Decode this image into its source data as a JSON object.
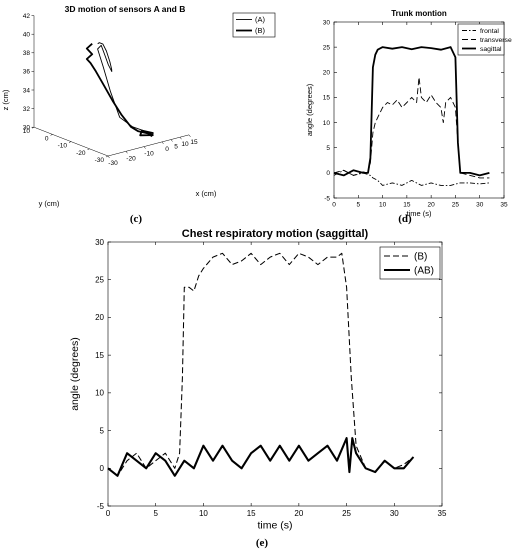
{
  "chart_data": [
    {
      "panel": "(c)",
      "type": "line",
      "title": "3D motion of sensors A and B",
      "xlabel": "x (cm)",
      "ylabel": "y (cm)",
      "zlabel": "z (cm)",
      "x_ticks": [
        "-30",
        "-20",
        "-10",
        "0",
        "5",
        "10",
        "15"
      ],
      "y_ticks": [
        "-30",
        "-20",
        "-10",
        "0",
        "10"
      ],
      "z_ticks": [
        "30",
        "32",
        "34",
        "36",
        "38",
        "40",
        "42"
      ],
      "xlim": [
        -30,
        15
      ],
      "ylim": [
        -30,
        10
      ],
      "zlim": [
        30,
        42
      ],
      "legend_position": "top-right",
      "series": [
        {
          "name": "(A)",
          "line": "thin",
          "points": [
            [
              -9,
              -4,
              39
            ],
            [
              -6,
              -2,
              38.8
            ],
            [
              -2,
              0,
              38.3
            ],
            [
              2,
              2,
              37.2
            ],
            [
              5,
              3,
              35.8
            ],
            [
              7,
              4,
              34.8
            ],
            [
              8,
              5,
              34.6
            ],
            [
              6,
              3,
              34.7
            ],
            [
              2,
              1,
              35.8
            ],
            [
              -2,
              -1,
              37.2
            ],
            [
              -6,
              -3,
              38.6
            ],
            [
              -8,
              -3,
              38.3
            ],
            [
              -7,
              -5,
              36.5
            ],
            [
              -6,
              -8,
              34
            ],
            [
              -5,
              -12,
              31.5
            ],
            [
              -4,
              -18,
              30.9
            ],
            [
              -3,
              -22,
              30.8
            ],
            [
              -2,
              -25,
              30.7
            ]
          ]
        },
        {
          "name": "(B)",
          "line": "thick",
          "points": [
            [
              -10,
              -2,
              38.9
            ],
            [
              -12,
              -1,
              38.4
            ],
            [
              -11,
              -3,
              37.9
            ],
            [
              -13,
              -2,
              37.4
            ],
            [
              -12,
              -3,
              37
            ],
            [
              -11,
              -5,
              36.2
            ],
            [
              -10,
              -8,
              35
            ],
            [
              -9,
              -12,
              33.5
            ],
            [
              -8,
              -16,
              32.2
            ],
            [
              -7,
              -20,
              31.2
            ],
            [
              -6,
              -23,
              30.9
            ],
            [
              -3,
              -25,
              30.7
            ],
            [
              -2,
              -27,
              30.6
            ],
            [
              -8,
              -26,
              30.8
            ],
            [
              -5,
              -24,
              31
            ],
            [
              -1,
              -26,
              30.7
            ],
            [
              -4,
              -28,
              30.6
            ]
          ]
        }
      ]
    },
    {
      "panel": "(d)",
      "type": "line",
      "title": "Trunk montion",
      "xlabel": "time (s)",
      "ylabel": "angle (degrees)",
      "xlim": [
        0,
        35
      ],
      "ylim": [
        -5,
        30
      ],
      "x_ticks": [
        0,
        5,
        10,
        15,
        20,
        25,
        30,
        35
      ],
      "y_ticks": [
        -5,
        0,
        5,
        10,
        15,
        20,
        25,
        30
      ],
      "legend_position": "top-right",
      "series": [
        {
          "name": "frontal",
          "style": "dash-dot",
          "x": [
            0,
            2,
            4,
            6,
            7.5,
            8,
            9,
            10,
            12,
            14,
            16,
            18,
            20,
            22,
            24,
            26,
            28,
            30,
            32
          ],
          "y": [
            -0.5,
            0.5,
            -0.5,
            0,
            -0.5,
            -1,
            -1.5,
            -2.5,
            -2,
            -2.5,
            -1.5,
            -2.5,
            -2,
            -2.5,
            -2.5,
            -2,
            -2,
            -2.2,
            -2
          ]
        },
        {
          "name": "transverse",
          "style": "dashed",
          "x": [
            0,
            2,
            4,
            6,
            7,
            7.5,
            8,
            8.5,
            9,
            10,
            11,
            12,
            13,
            14,
            15,
            16,
            17,
            17.5,
            18,
            19,
            20,
            21,
            22,
            22.5,
            23,
            24,
            25,
            25.5,
            26,
            28,
            30,
            32
          ],
          "y": [
            0,
            0.5,
            -0.5,
            0.2,
            0,
            2,
            8,
            10,
            11,
            13,
            14,
            13.5,
            14.5,
            13,
            14,
            15,
            14,
            19,
            15,
            14,
            15.5,
            14,
            13,
            10,
            14,
            15,
            13,
            6,
            0,
            -0.5,
            -1,
            -1
          ]
        },
        {
          "name": "sagittal",
          "style": "solid-thick",
          "x": [
            0,
            2,
            4,
            6,
            7,
            7.5,
            8,
            8.5,
            9,
            10,
            12,
            14,
            16,
            18,
            20,
            22,
            24,
            25,
            25.5,
            26,
            28,
            30,
            32
          ],
          "y": [
            0,
            -0.5,
            0.5,
            0,
            0,
            3,
            21,
            23.5,
            24.5,
            25,
            24.7,
            25,
            24.6,
            25,
            24.8,
            24.5,
            25,
            23,
            6,
            0,
            0,
            -0.5,
            0
          ]
        }
      ]
    },
    {
      "panel": "(e)",
      "type": "line",
      "title": "Chest respiratory motion (saggittal)",
      "xlabel": "time (s)",
      "ylabel": "angle (degrees)",
      "xlim": [
        0,
        35
      ],
      "ylim": [
        -5,
        30
      ],
      "x_ticks": [
        0,
        5,
        10,
        15,
        20,
        25,
        30,
        35
      ],
      "y_ticks": [
        -5,
        0,
        5,
        10,
        15,
        20,
        25,
        30
      ],
      "legend_position": "top-right",
      "series": [
        {
          "name": "(B)",
          "style": "dashed",
          "x": [
            0,
            1,
            2,
            3,
            4,
            5,
            6,
            7,
            7.5,
            7.8,
            8,
            8.5,
            9,
            9.5,
            10,
            11,
            12,
            13,
            14,
            15,
            16,
            17,
            18,
            19,
            20,
            21,
            22,
            23,
            24,
            24.5,
            25,
            25.5,
            26,
            27,
            28,
            29,
            30,
            31,
            32
          ],
          "y": [
            0,
            -1,
            1,
            2,
            0,
            1,
            2,
            0,
            2,
            12,
            24,
            24,
            23.5,
            25.5,
            26.5,
            28,
            28.5,
            27,
            27.5,
            28.5,
            27,
            28,
            28.5,
            27,
            28.5,
            28,
            27,
            28,
            28,
            28.5,
            24,
            12,
            3,
            0,
            -0.5,
            1,
            0,
            0.5,
            1.5
          ]
        },
        {
          "name": "(AB)",
          "style": "solid-thick",
          "x": [
            0,
            1,
            2,
            3,
            4,
            5,
            6,
            7,
            8,
            9,
            10,
            11,
            12,
            13,
            14,
            15,
            16,
            17,
            18,
            19,
            20,
            21,
            22,
            23,
            24,
            25,
            25.3,
            25.6,
            26,
            27,
            28,
            29,
            30,
            31,
            32
          ],
          "y": [
            0,
            -1,
            2,
            1,
            0,
            2,
            1,
            -1,
            1,
            0,
            3,
            1,
            3,
            1,
            0,
            2,
            3,
            1,
            3,
            1,
            3,
            1,
            2,
            3,
            1,
            4,
            -0.5,
            4,
            2,
            0,
            -0.5,
            1,
            0,
            0,
            1.5
          ]
        }
      ]
    }
  ]
}
